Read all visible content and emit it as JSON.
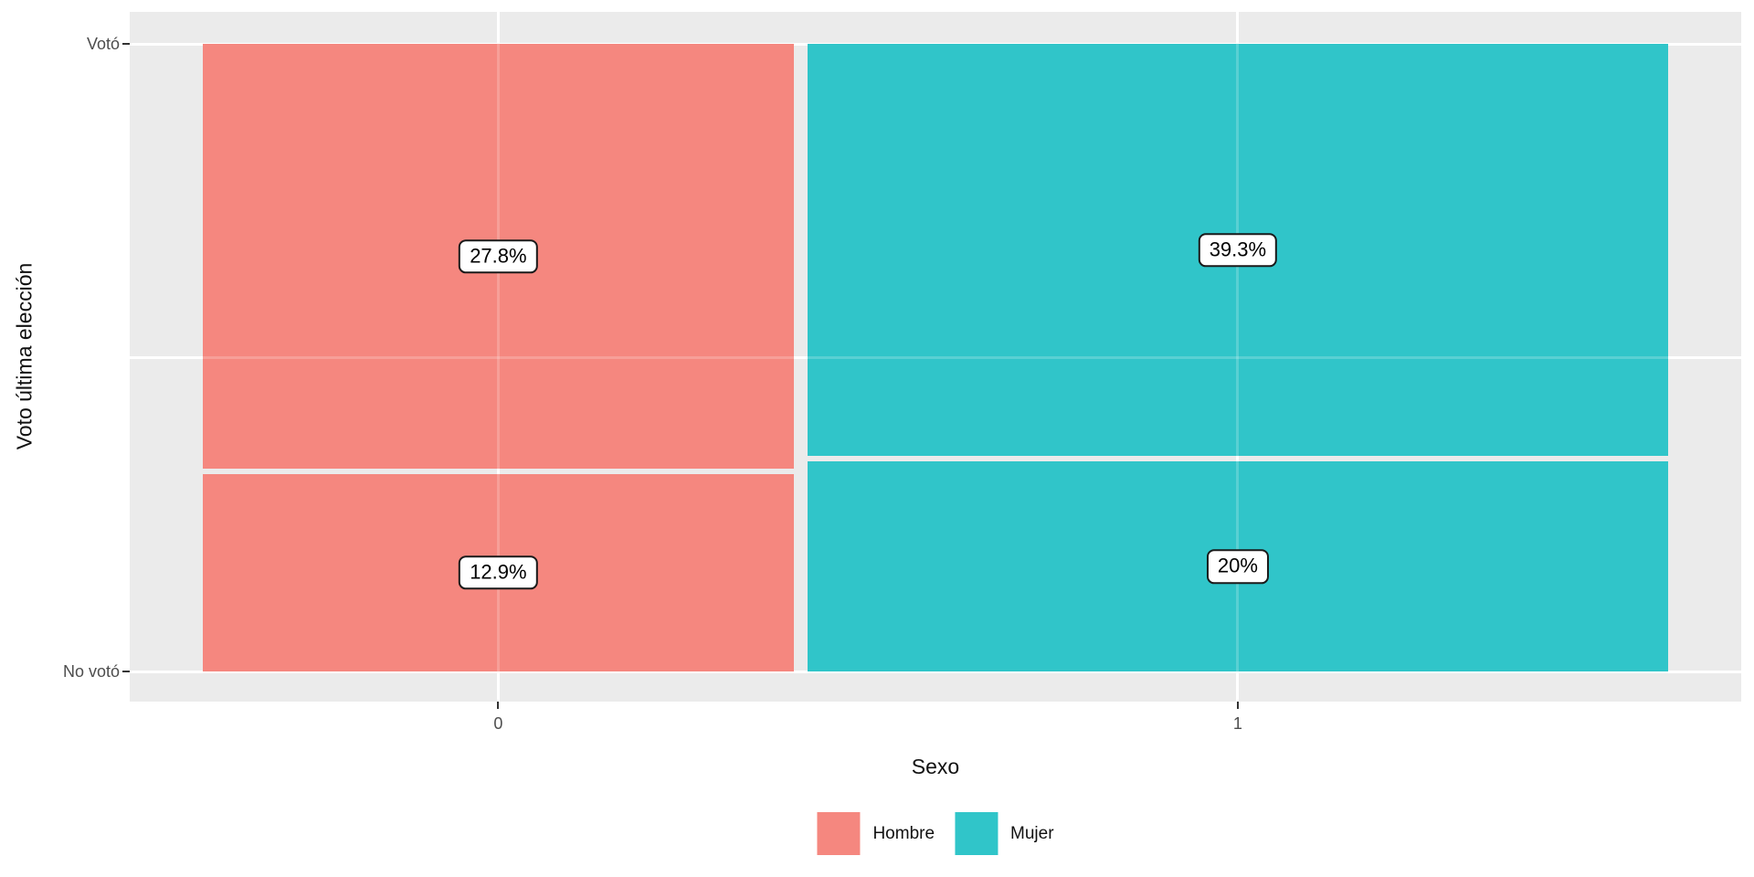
{
  "figure": {
    "background": "#FFFFFF",
    "panel_background": "#EBEBEB",
    "gridline_color": "#FFFFFF",
    "tick_mark_color": "#333333",
    "tick_label_color": "#4D4D4D"
  },
  "chart_data": {
    "type": "mosaic",
    "title": "",
    "xlabel": "Sexo",
    "ylabel": "Voto última elección",
    "x_tick_labels": [
      "0",
      "1"
    ],
    "y_tick_labels_top_to_bottom": [
      "Votó",
      "No votó"
    ],
    "legend": {
      "position": "bottom",
      "items": [
        {
          "label": "Hombre",
          "color": "#F5877F"
        },
        {
          "label": "Mujer",
          "color": "#30C5C9"
        }
      ]
    },
    "columns": [
      {
        "x_tick": "0",
        "group": "Hombre",
        "color": "#F5877F",
        "segments": [
          {
            "row": "Votó",
            "pct": 27.8,
            "label": "27.8%"
          },
          {
            "row": "No votó",
            "pct": 12.9,
            "label": "12.9%"
          }
        ]
      },
      {
        "x_tick": "1",
        "group": "Mujer",
        "color": "#30C5C9",
        "segments": [
          {
            "row": "Votó",
            "pct": 39.3,
            "label": "39.3%"
          },
          {
            "row": "No votó",
            "pct": 20,
            "label": "20%"
          }
        ]
      }
    ]
  }
}
